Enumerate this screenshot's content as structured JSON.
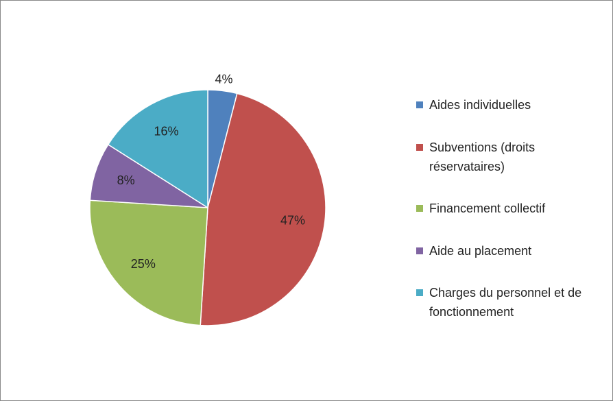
{
  "chart_data": {
    "type": "pie",
    "categories": [
      "Aides individuelles",
      "Subventions (droits réservataires)",
      "Financement collectif",
      "Aide au placement",
      "Charges du personnel et de fonctionnement"
    ],
    "values": [
      4,
      47,
      25,
      8,
      16
    ],
    "value_labels": [
      "4%",
      "47%",
      "25%",
      "8%",
      "16%"
    ],
    "colors": [
      "#4f81bd",
      "#c0504d",
      "#9bbb59",
      "#8064a2",
      "#4bacc6"
    ],
    "legend": "right"
  }
}
